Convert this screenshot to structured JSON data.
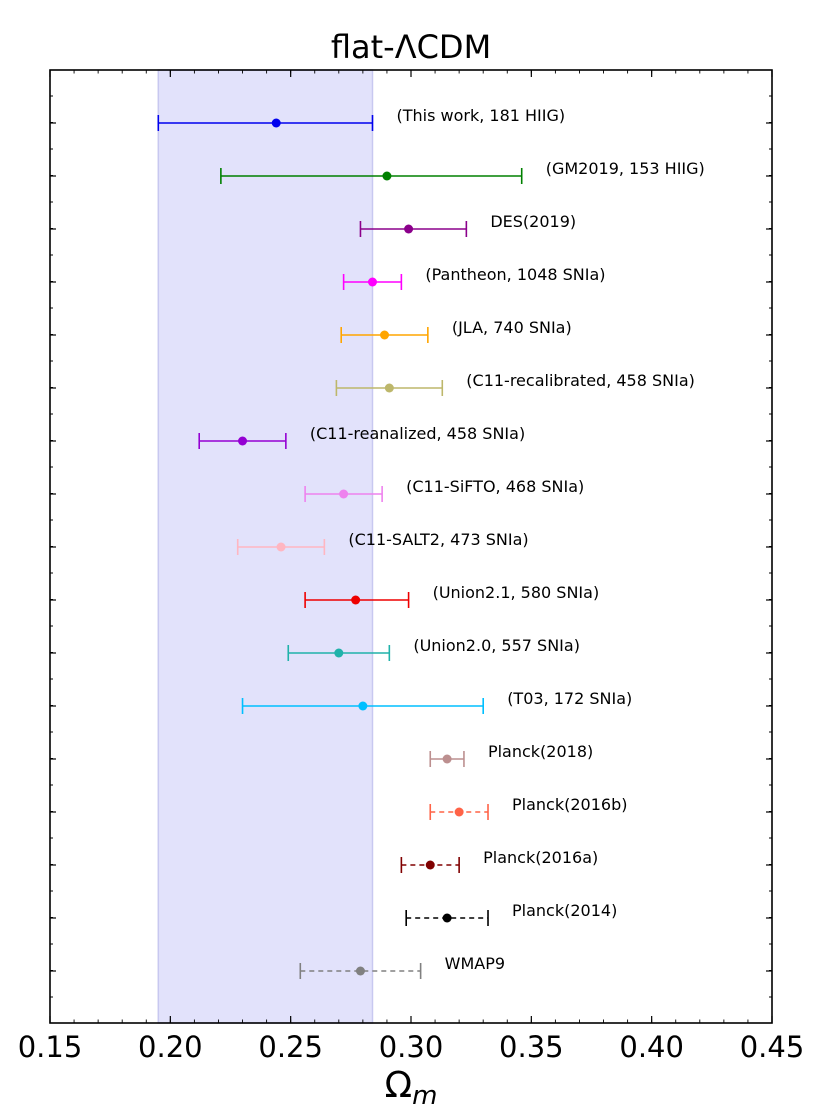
{
  "chart_data": {
    "type": "scatter",
    "title": "flat-ΛCDM",
    "xlabel_main": "Ω",
    "xlabel_sub": "m",
    "xlim": [
      0.15,
      0.45
    ],
    "xticks": [
      "0.15",
      "0.20",
      "0.25",
      "0.30",
      "0.35",
      "0.40",
      "0.45"
    ],
    "xtick_values": [
      0.15,
      0.2,
      0.25,
      0.3,
      0.35,
      0.4,
      0.45
    ],
    "band": {
      "low": 0.195,
      "high": 0.284,
      "color": "#e2e2fb",
      "edge": "#c8c8f0"
    },
    "points": [
      {
        "label": "(This work, 181 HIIG)",
        "value": 0.244,
        "low": 0.195,
        "high": 0.284,
        "color": "#0000ee",
        "dashed": false
      },
      {
        "label": "(GM2019, 153 HIIG)",
        "value": 0.29,
        "low": 0.221,
        "high": 0.346,
        "color": "#008000",
        "dashed": false
      },
      {
        "label": "DES(2019)",
        "value": 0.299,
        "low": 0.279,
        "high": 0.323,
        "color": "#8b008b",
        "dashed": false
      },
      {
        "label": "(Pantheon, 1048 SNIa)",
        "value": 0.284,
        "low": 0.272,
        "high": 0.296,
        "color": "#ff00ff",
        "dashed": false
      },
      {
        "label": "(JLA, 740 SNIa)",
        "value": 0.289,
        "low": 0.271,
        "high": 0.307,
        "color": "#ffa500",
        "dashed": false
      },
      {
        "label": "(C11-recalibrated, 458 SNIa)",
        "value": 0.291,
        "low": 0.269,
        "high": 0.313,
        "color": "#bdb76b",
        "dashed": false
      },
      {
        "label": "(C11-reanalized, 458 SNIa)",
        "value": 0.23,
        "low": 0.212,
        "high": 0.248,
        "color": "#9400d3",
        "dashed": false
      },
      {
        "label": "(C11-SiFTO, 468 SNIa)",
        "value": 0.272,
        "low": 0.256,
        "high": 0.288,
        "color": "#ee82ee",
        "dashed": false
      },
      {
        "label": "(C11-SALT2, 473 SNIa)",
        "value": 0.246,
        "low": 0.228,
        "high": 0.264,
        "color": "#ffb6c1",
        "dashed": false
      },
      {
        "label": "(Union2.1, 580 SNIa)",
        "value": 0.277,
        "low": 0.256,
        "high": 0.299,
        "color": "#ee0000",
        "dashed": false
      },
      {
        "label": "(Union2.0, 557 SNIa)",
        "value": 0.27,
        "low": 0.249,
        "high": 0.291,
        "color": "#20b2aa",
        "dashed": false
      },
      {
        "label": "(T03, 172 SNIa)",
        "value": 0.28,
        "low": 0.23,
        "high": 0.33,
        "color": "#00bfff",
        "dashed": false
      },
      {
        "label": "Planck(2018)",
        "value": 0.315,
        "low": 0.308,
        "high": 0.322,
        "color": "#bc8f8f",
        "dashed": false
      },
      {
        "label": "Planck(2016b)",
        "value": 0.32,
        "low": 0.308,
        "high": 0.332,
        "color": "#ff6347",
        "dashed": true
      },
      {
        "label": "Planck(2016a)",
        "value": 0.308,
        "low": 0.296,
        "high": 0.32,
        "color": "#800000",
        "dashed": true
      },
      {
        "label": "Planck(2014)",
        "value": 0.315,
        "low": 0.298,
        "high": 0.332,
        "color": "#000000",
        "dashed": true
      },
      {
        "label": "WMAP9",
        "value": 0.279,
        "low": 0.254,
        "high": 0.304,
        "color": "#808080",
        "dashed": true
      }
    ]
  }
}
